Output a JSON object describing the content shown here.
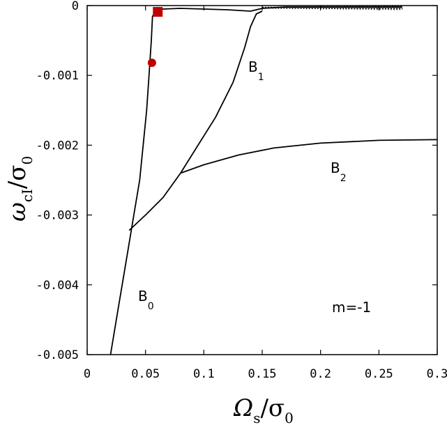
{
  "chart_data": {
    "type": "line",
    "xlim": [
      0,
      0.3
    ],
    "ylim": [
      -0.005,
      0
    ],
    "x_ticks": [
      "0",
      "0.05",
      "0.1",
      "0.15",
      "0.2",
      "0.25",
      "0.3"
    ],
    "y_ticks": [
      "0",
      "-0.001",
      "-0.002",
      "-0.003",
      "-0.004",
      "-0.005"
    ],
    "xlabel": {
      "main": "Ω",
      "sub1": "s",
      "div": "/σ",
      "sub2": "0"
    },
    "ylabel": {
      "main": "ω",
      "sub1": "cI",
      "div": "/σ",
      "sub2": "0"
    },
    "grid": false,
    "series": [
      {
        "name": "B0",
        "label_main": "B",
        "label_sub": "0",
        "x": [
          0.02,
          0.025,
          0.03,
          0.035,
          0.04,
          0.045,
          0.048,
          0.051,
          0.053,
          0.055,
          0.056
        ],
        "y": [
          -0.005,
          -0.0045,
          -0.004,
          -0.0035,
          -0.003,
          -0.0025,
          -0.002,
          -0.0015,
          -0.001,
          -0.0005,
          -0.00015
        ]
      },
      {
        "name": "B1",
        "label_main": "B",
        "label_sub": "1",
        "x": [
          0.036,
          0.05,
          0.065,
          0.08,
          0.095,
          0.11,
          0.125,
          0.135,
          0.14,
          0.145,
          0.15
        ],
        "y": [
          -0.00322,
          -0.003,
          -0.00275,
          -0.0024,
          -0.002,
          -0.0016,
          -0.0011,
          -0.0006,
          -0.0003,
          -0.00012,
          -8e-05
        ]
      },
      {
        "name": "B2",
        "label_main": "B",
        "label_sub": "2",
        "x": [
          0.08,
          0.1,
          0.13,
          0.16,
          0.2,
          0.25,
          0.3
        ],
        "y": [
          -0.0024,
          -0.00228,
          -0.00214,
          -0.00204,
          -0.00197,
          -0.00193,
          -0.00192
        ]
      },
      {
        "name": "upper",
        "x": [
          0.056,
          0.06,
          0.065,
          0.08,
          0.1,
          0.12,
          0.14,
          0.15,
          0.17,
          0.2,
          0.23,
          0.26,
          0.27
        ],
        "y": [
          -0.00015,
          -7e-05,
          -5e-05,
          -4e-05,
          -5e-05,
          -6e-05,
          -8e-05,
          -4e-05,
          -2e-05,
          -2e-05,
          -2e-05,
          -2e-05,
          -2e-05
        ]
      }
    ],
    "markers": [
      {
        "shape": "circle",
        "x": 0.0555,
        "y": -0.00082,
        "color": "#c00000"
      },
      {
        "shape": "square",
        "x": 0.0605,
        "y": -9e-05,
        "color": "#c00000"
      }
    ],
    "annotation": "m=-1"
  }
}
